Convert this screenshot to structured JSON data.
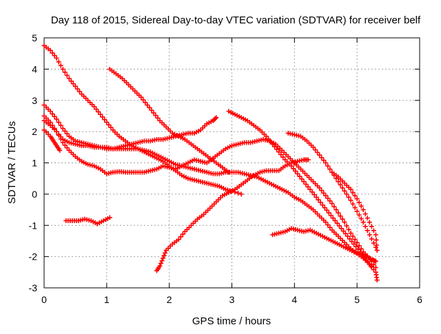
{
  "chart_data": {
    "type": "scatter",
    "title": "Day 118 of 2015, Sidereal Day-to-day VTEC variation (SDTVAR) for receiver belf",
    "xlabel": "GPS time / hours",
    "ylabel": "SDTVAR / TECUs",
    "xlim": [
      0,
      6
    ],
    "ylim": [
      -3,
      5
    ],
    "x_ticks": [
      "0",
      "1",
      "2",
      "3",
      "4",
      "5",
      "6"
    ],
    "y_ticks": [
      "-3",
      "-2",
      "-1",
      "0",
      "1",
      "2",
      "3",
      "4",
      "5"
    ],
    "grid": true,
    "marker": "plus",
    "series_color": "#ff0000",
    "series": [
      {
        "points": [
          [
            0.0,
            4.75
          ],
          [
            0.1,
            4.6
          ],
          [
            0.2,
            4.35
          ],
          [
            0.3,
            4.0
          ],
          [
            0.4,
            3.7
          ],
          [
            0.5,
            3.45
          ],
          [
            0.6,
            3.2
          ],
          [
            0.7,
            3.0
          ],
          [
            0.8,
            2.8
          ],
          [
            0.9,
            2.55
          ],
          [
            1.0,
            2.3
          ],
          [
            1.1,
            2.05
          ],
          [
            1.2,
            1.85
          ],
          [
            1.3,
            1.7
          ],
          [
            1.4,
            1.55
          ],
          [
            1.5,
            1.45
          ],
          [
            1.6,
            1.35
          ],
          [
            1.7,
            1.25
          ],
          [
            1.8,
            1.15
          ],
          [
            1.9,
            1.05
          ],
          [
            2.0,
            0.9
          ],
          [
            2.1,
            0.75
          ],
          [
            2.2,
            0.6
          ],
          [
            2.3,
            0.5
          ],
          [
            2.4,
            0.45
          ],
          [
            2.5,
            0.4
          ],
          [
            2.6,
            0.35
          ],
          [
            2.7,
            0.3
          ],
          [
            2.8,
            0.25
          ],
          [
            2.9,
            0.15
          ],
          [
            3.0,
            0.1
          ],
          [
            3.15,
            0.0
          ]
        ]
      },
      {
        "points": [
          [
            0.0,
            2.05
          ],
          [
            0.1,
            1.85
          ],
          [
            0.15,
            1.7
          ],
          [
            0.2,
            1.55
          ],
          [
            0.25,
            1.4
          ]
        ]
      },
      {
        "points": [
          [
            0.0,
            2.35
          ],
          [
            0.1,
            2.2
          ],
          [
            0.2,
            2.0
          ],
          [
            0.3,
            1.75
          ],
          [
            0.4,
            1.65
          ],
          [
            0.5,
            1.6
          ],
          [
            0.6,
            1.55
          ],
          [
            0.7,
            1.55
          ],
          [
            0.8,
            1.5
          ],
          [
            0.9,
            1.5
          ],
          [
            1.0,
            1.45
          ],
          [
            1.1,
            1.45
          ],
          [
            1.2,
            1.5
          ],
          [
            1.3,
            1.55
          ],
          [
            1.4,
            1.6
          ],
          [
            1.5,
            1.65
          ],
          [
            1.6,
            1.7
          ],
          [
            1.7,
            1.7
          ],
          [
            1.8,
            1.75
          ],
          [
            1.9,
            1.75
          ],
          [
            2.0,
            1.8
          ],
          [
            2.1,
            1.85
          ],
          [
            2.2,
            1.9
          ],
          [
            2.3,
            1.95
          ],
          [
            2.4,
            1.95
          ],
          [
            2.5,
            2.05
          ],
          [
            2.6,
            2.25
          ],
          [
            2.7,
            2.35
          ],
          [
            2.75,
            2.45
          ]
        ]
      },
      {
        "points": [
          [
            0.0,
            2.85
          ],
          [
            0.1,
            2.65
          ],
          [
            0.2,
            2.4
          ],
          [
            0.3,
            2.1
          ],
          [
            0.4,
            1.85
          ],
          [
            0.5,
            1.7
          ],
          [
            0.6,
            1.65
          ],
          [
            0.7,
            1.6
          ],
          [
            0.8,
            1.55
          ],
          [
            0.9,
            1.5
          ],
          [
            1.0,
            1.5
          ],
          [
            1.1,
            1.45
          ],
          [
            1.2,
            1.45
          ],
          [
            1.3,
            1.45
          ],
          [
            1.4,
            1.45
          ],
          [
            1.5,
            1.45
          ],
          [
            1.6,
            1.4
          ],
          [
            1.7,
            1.35
          ],
          [
            1.8,
            1.25
          ],
          [
            1.9,
            1.15
          ],
          [
            2.0,
            1.05
          ],
          [
            2.1,
            0.95
          ],
          [
            2.2,
            0.9
          ],
          [
            2.3,
            0.85
          ],
          [
            2.4,
            0.8
          ],
          [
            2.5,
            0.75
          ],
          [
            2.6,
            0.7
          ],
          [
            2.7,
            0.65
          ],
          [
            2.8,
            0.65
          ],
          [
            2.9,
            0.7
          ],
          [
            3.0,
            0.7
          ],
          [
            3.1,
            0.7
          ],
          [
            3.2,
            0.65
          ],
          [
            3.3,
            0.6
          ],
          [
            3.4,
            0.55
          ],
          [
            3.5,
            0.45
          ],
          [
            3.6,
            0.35
          ],
          [
            3.7,
            0.25
          ],
          [
            3.8,
            0.15
          ],
          [
            3.9,
            0.05
          ],
          [
            4.0,
            -0.1
          ],
          [
            4.1,
            -0.2
          ],
          [
            4.2,
            -0.35
          ],
          [
            4.3,
            -0.5
          ],
          [
            4.4,
            -0.7
          ],
          [
            4.5,
            -0.9
          ],
          [
            4.6,
            -1.15
          ],
          [
            4.7,
            -1.35
          ],
          [
            4.8,
            -1.55
          ],
          [
            4.9,
            -1.75
          ],
          [
            5.0,
            -1.9
          ],
          [
            5.1,
            -2.05
          ],
          [
            5.2,
            -2.25
          ],
          [
            5.3,
            -2.5
          ],
          [
            5.32,
            -2.75
          ]
        ]
      },
      {
        "points": [
          [
            0.0,
            2.5
          ],
          [
            0.1,
            2.3
          ],
          [
            0.2,
            2.0
          ],
          [
            0.3,
            1.65
          ],
          [
            0.4,
            1.4
          ],
          [
            0.5,
            1.2
          ],
          [
            0.6,
            1.05
          ],
          [
            0.7,
            0.95
          ],
          [
            0.8,
            0.9
          ],
          [
            0.9,
            0.8
          ],
          [
            1.0,
            0.65
          ],
          [
            1.1,
            0.7
          ],
          [
            1.2,
            0.72
          ],
          [
            1.3,
            0.7
          ],
          [
            1.4,
            0.7
          ],
          [
            1.5,
            0.7
          ],
          [
            1.6,
            0.7
          ],
          [
            1.7,
            0.75
          ],
          [
            1.8,
            0.8
          ],
          [
            1.9,
            0.9
          ],
          [
            2.0,
            0.85
          ],
          [
            2.1,
            0.8
          ],
          [
            2.2,
            0.9
          ],
          [
            2.3,
            1.0
          ],
          [
            2.4,
            1.1
          ],
          [
            2.5,
            1.05
          ],
          [
            2.6,
            1.0
          ],
          [
            2.7,
            1.15
          ],
          [
            2.8,
            1.3
          ],
          [
            2.9,
            1.45
          ],
          [
            3.0,
            1.55
          ],
          [
            3.1,
            1.6
          ],
          [
            3.2,
            1.65
          ],
          [
            3.3,
            1.65
          ],
          [
            3.4,
            1.7
          ],
          [
            3.5,
            1.75
          ],
          [
            3.6,
            1.7
          ],
          [
            3.7,
            1.6
          ],
          [
            3.8,
            1.4
          ],
          [
            3.9,
            1.2
          ],
          [
            4.0,
            1.0
          ],
          [
            4.1,
            0.8
          ],
          [
            4.2,
            0.6
          ],
          [
            4.3,
            0.4
          ],
          [
            4.4,
            0.2
          ],
          [
            4.5,
            -0.05
          ],
          [
            4.6,
            -0.3
          ],
          [
            4.7,
            -0.6
          ],
          [
            4.8,
            -0.9
          ],
          [
            4.9,
            -1.25
          ],
          [
            5.0,
            -1.55
          ],
          [
            5.1,
            -1.85
          ],
          [
            5.2,
            -2.05
          ],
          [
            5.3,
            -2.35
          ]
        ]
      },
      {
        "points": [
          [
            1.05,
            4.0
          ],
          [
            1.15,
            3.85
          ],
          [
            1.25,
            3.7
          ],
          [
            1.35,
            3.5
          ],
          [
            1.45,
            3.3
          ],
          [
            1.55,
            3.1
          ],
          [
            1.65,
            2.85
          ],
          [
            1.75,
            2.6
          ],
          [
            1.85,
            2.35
          ],
          [
            1.95,
            2.15
          ],
          [
            2.05,
            1.95
          ],
          [
            2.15,
            1.85
          ],
          [
            2.25,
            1.75
          ],
          [
            2.35,
            1.6
          ],
          [
            2.45,
            1.45
          ],
          [
            2.55,
            1.3
          ],
          [
            2.65,
            1.15
          ],
          [
            2.75,
            1.0
          ],
          [
            2.85,
            0.85
          ],
          [
            2.95,
            0.7
          ]
        ]
      },
      {
        "points": [
          [
            0.35,
            -0.85
          ],
          [
            0.45,
            -0.85
          ],
          [
            0.55,
            -0.85
          ],
          [
            0.65,
            -0.8
          ],
          [
            0.75,
            -0.85
          ],
          [
            0.85,
            -0.95
          ],
          [
            0.95,
            -0.85
          ],
          [
            1.05,
            -0.75
          ]
        ]
      },
      {
        "points": [
          [
            1.8,
            -2.45
          ],
          [
            1.85,
            -2.3
          ],
          [
            1.9,
            -2.05
          ],
          [
            1.95,
            -1.8
          ],
          [
            2.05,
            -1.6
          ],
          [
            2.15,
            -1.45
          ],
          [
            2.25,
            -1.2
          ],
          [
            2.35,
            -1.0
          ],
          [
            2.45,
            -0.8
          ],
          [
            2.55,
            -0.65
          ],
          [
            2.65,
            -0.45
          ],
          [
            2.75,
            -0.25
          ],
          [
            2.85,
            -0.05
          ],
          [
            2.95,
            0.05
          ],
          [
            3.05,
            0.15
          ],
          [
            3.15,
            0.3
          ],
          [
            3.25,
            0.45
          ],
          [
            3.35,
            0.6
          ],
          [
            3.45,
            0.7
          ],
          [
            3.55,
            0.75
          ],
          [
            3.65,
            0.75
          ],
          [
            3.75,
            0.75
          ],
          [
            3.85,
            0.9
          ],
          [
            3.95,
            1.0
          ],
          [
            4.05,
            1.05
          ],
          [
            4.15,
            1.1
          ],
          [
            4.22,
            1.1
          ]
        ]
      },
      {
        "points": [
          [
            2.95,
            2.65
          ],
          [
            3.05,
            2.55
          ],
          [
            3.15,
            2.45
          ],
          [
            3.25,
            2.35
          ],
          [
            3.35,
            2.2
          ],
          [
            3.45,
            2.05
          ],
          [
            3.55,
            1.85
          ],
          [
            3.65,
            1.6
          ],
          [
            3.75,
            1.35
          ],
          [
            3.85,
            1.1
          ],
          [
            3.95,
            0.9
          ],
          [
            4.05,
            0.65
          ],
          [
            4.15,
            0.4
          ],
          [
            4.25,
            0.15
          ],
          [
            4.35,
            -0.1
          ],
          [
            4.45,
            -0.35
          ],
          [
            4.55,
            -0.6
          ],
          [
            4.65,
            -0.85
          ],
          [
            4.75,
            -1.1
          ],
          [
            4.85,
            -1.35
          ],
          [
            4.95,
            -1.6
          ],
          [
            5.05,
            -1.85
          ],
          [
            5.15,
            -2.1
          ],
          [
            5.22,
            -2.3
          ]
        ]
      },
      {
        "points": [
          [
            3.65,
            -1.3
          ],
          [
            3.75,
            -1.25
          ],
          [
            3.85,
            -1.2
          ],
          [
            3.95,
            -1.1
          ],
          [
            4.05,
            -1.15
          ],
          [
            4.15,
            -1.2
          ],
          [
            4.25,
            -1.15
          ],
          [
            4.35,
            -1.25
          ],
          [
            4.45,
            -1.35
          ],
          [
            4.55,
            -1.45
          ],
          [
            4.65,
            -1.55
          ],
          [
            4.75,
            -1.65
          ],
          [
            4.85,
            -1.75
          ],
          [
            4.95,
            -1.85
          ],
          [
            5.05,
            -1.9
          ],
          [
            5.15,
            -2.0
          ],
          [
            5.25,
            -2.1
          ],
          [
            5.3,
            -2.15
          ]
        ]
      },
      {
        "points": [
          [
            3.9,
            1.95
          ],
          [
            4.0,
            1.9
          ],
          [
            4.1,
            1.85
          ],
          [
            4.2,
            1.7
          ],
          [
            4.3,
            1.5
          ],
          [
            4.4,
            1.25
          ],
          [
            4.5,
            1.0
          ],
          [
            4.6,
            0.7
          ],
          [
            4.7,
            0.4
          ],
          [
            4.8,
            0.1
          ],
          [
            4.9,
            -0.2
          ],
          [
            5.0,
            -0.55
          ],
          [
            5.1,
            -0.9
          ],
          [
            5.2,
            -1.3
          ],
          [
            5.3,
            -1.7
          ]
        ]
      },
      {
        "points": [
          [
            4.6,
            0.7
          ],
          [
            4.7,
            0.55
          ],
          [
            4.8,
            0.35
          ],
          [
            4.9,
            0.15
          ],
          [
            5.0,
            -0.15
          ],
          [
            5.1,
            -0.5
          ],
          [
            5.2,
            -0.9
          ],
          [
            5.3,
            -1.3
          ],
          [
            5.32,
            -1.8
          ]
        ]
      }
    ]
  }
}
